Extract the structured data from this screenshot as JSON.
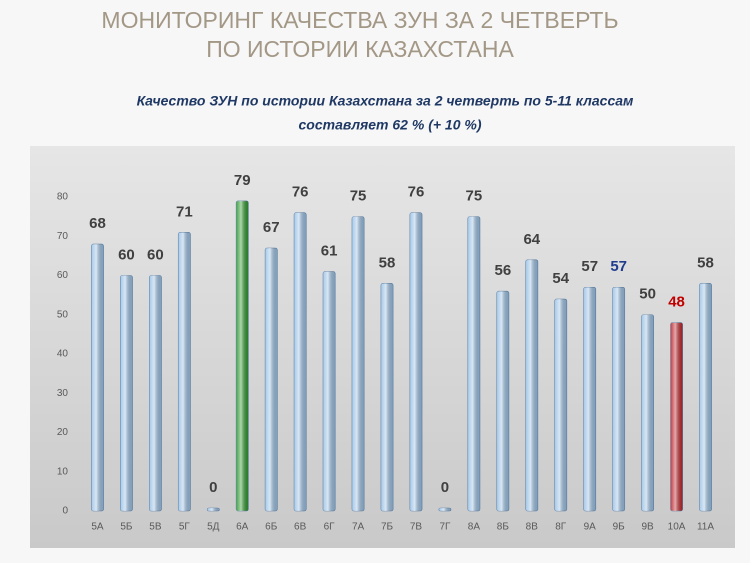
{
  "chart_data": {
    "type": "bar",
    "title": [
      "МОНИТОРИНГ  КАЧЕСТВА ЗУН ЗА 2  ЧЕТВЕРТЬ",
      "ПО  ИСТОРИИ  КАЗАХСТАНА"
    ],
    "subtitle": [
      "Качество ЗУН по истории Казахстана  за 2 четверть  по 5-11 классам",
      "составляет  62  % (+ 10 %)"
    ],
    "categories": [
      "5А",
      "5Б",
      "5В",
      "5Г",
      "5Д",
      "6А",
      "6Б",
      "6В",
      "6Г",
      "7А",
      "7Б",
      "7В",
      "7Г",
      "8А",
      "8Б",
      "8В",
      "8Г",
      "9А",
      "9Б",
      "9В",
      "10А",
      "11А"
    ],
    "values": [
      68,
      60,
      60,
      71,
      0,
      79,
      67,
      76,
      61,
      75,
      58,
      76,
      0,
      75,
      56,
      64,
      54,
      57,
      57,
      50,
      48,
      58
    ],
    "colors": [
      "#9dc3e6",
      "#9dc3e6",
      "#9dc3e6",
      "#9dc3e6",
      "#9dc3e6",
      "#2e9a2e",
      "#9dc3e6",
      "#9dc3e6",
      "#9dc3e6",
      "#9dc3e6",
      "#9dc3e6",
      "#9dc3e6",
      "#9dc3e6",
      "#9dc3e6",
      "#9dc3e6",
      "#9dc3e6",
      "#9dc3e6",
      "#9dc3e6",
      "#9dc3e6",
      "#9dc3e6",
      "#c0262b",
      "#9dc3e6"
    ],
    "label_colors": [
      "#404040",
      "#404040",
      "#404040",
      "#404040",
      "#404040",
      "#404040",
      "#404040",
      "#404040",
      "#404040",
      "#404040",
      "#404040",
      "#404040",
      "#404040",
      "#404040",
      "#404040",
      "#404040",
      "#404040",
      "#404040",
      "#1f3d8c",
      "#404040",
      "#c00000",
      "#404040"
    ],
    "ylim": [
      0,
      80
    ],
    "yticks": [
      0,
      10,
      20,
      30,
      40,
      50,
      60,
      70,
      80
    ],
    "grid": false
  }
}
